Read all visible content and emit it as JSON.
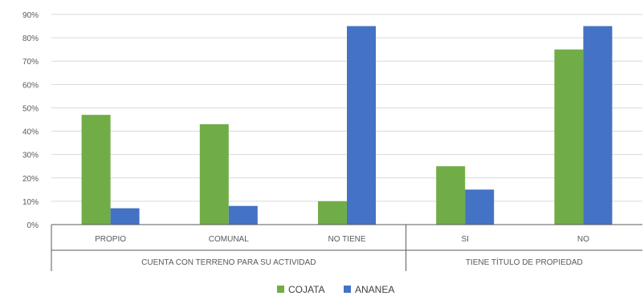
{
  "chart_data": {
    "type": "bar",
    "categories": [
      "PROPIO",
      "COMUNAL",
      "NO TIENE",
      "SI",
      "NO"
    ],
    "groups": [
      {
        "label": "CUENTA CON TERRENO PARA SU ACTIVIDAD",
        "categories": [
          "PROPIO",
          "COMUNAL",
          "NO TIENE"
        ]
      },
      {
        "label": "TIENE TÍTULO DE PROPIEDAD",
        "categories": [
          "SI",
          "NO"
        ]
      }
    ],
    "series": [
      {
        "name": "COJATA",
        "color": "#70ad47",
        "values": [
          0.47,
          0.43,
          0.1,
          0.25,
          0.75
        ]
      },
      {
        "name": "ANANEA",
        "color": "#4472c4",
        "values": [
          0.07,
          0.08,
          0.85,
          0.15,
          0.85
        ]
      }
    ],
    "yticks": [
      "0%",
      "10%",
      "20%",
      "30%",
      "40%",
      "50%",
      "60%",
      "70%",
      "80%",
      "90%"
    ],
    "ylim": [
      0,
      0.9
    ],
    "grid": true,
    "legend_position": "bottom"
  }
}
